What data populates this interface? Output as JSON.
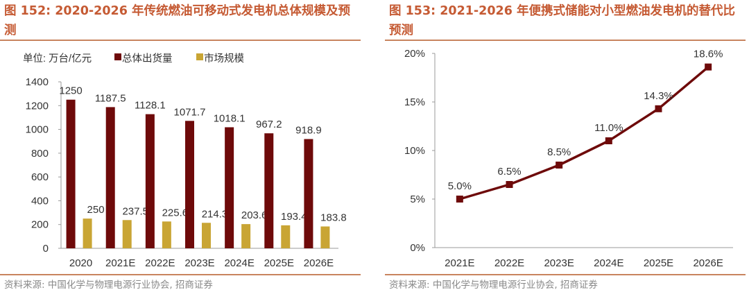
{
  "colors": {
    "title": "#c55a33",
    "rule": "#c8845e",
    "dark_red": "#6e0a0a",
    "gold": "#c9a534",
    "text": "#333333",
    "source": "#888888"
  },
  "left": {
    "title": "图 152: 2020-2026 年传统燃油可移动式发电机总体规模及预测",
    "unit": "单位: 万台/亿元",
    "source": "资料来源: 中国化学与物理电源行业协会, 招商证券"
  },
  "right": {
    "title": "图 153: 2021-2026 年便携式储能对小型燃油发电机的替代比预测",
    "source": "资料来源: 中国化学与物理电源行业协会, 招商证券"
  },
  "chart_data": [
    {
      "type": "bar",
      "categories": [
        "2020",
        "2021E",
        "2022E",
        "2023E",
        "2024E",
        "2025E",
        "2026E"
      ],
      "series": [
        {
          "name": "总体出货量",
          "values": [
            1250,
            1187.5,
            1128.1,
            1071.7,
            1018.1,
            967.2,
            918.9
          ],
          "labels": [
            "1250",
            "1187.5",
            "1128.1",
            "1071.7",
            "1018.1",
            "967.2",
            "918.9"
          ]
        },
        {
          "name": "市场规模",
          "values": [
            250,
            237.5,
            225.6,
            214.3,
            203.6,
            193.4,
            183.8
          ],
          "labels": [
            "250",
            "237.5",
            "225.6",
            "214.3",
            "203.6",
            "193.4",
            "183.8"
          ]
        }
      ],
      "ylim": [
        0,
        1400
      ],
      "yticks": [
        "0",
        "200",
        "400",
        "600",
        "800",
        "1000",
        "1200",
        "1400"
      ],
      "legend_position": "top",
      "grid": false
    },
    {
      "type": "line",
      "x": [
        "2021E",
        "2022E",
        "2023E",
        "2024E",
        "2025E",
        "2026E"
      ],
      "series": [
        {
          "values": [
            5.0,
            6.5,
            8.5,
            11.0,
            14.3,
            18.6
          ],
          "labels": [
            "5.0%",
            "6.5%",
            "8.5%",
            "11.0%",
            "14.3%",
            "18.6%"
          ]
        }
      ],
      "ylim": [
        0,
        20
      ],
      "yticks": [
        "0%",
        "5%",
        "10%",
        "15%",
        "20%"
      ],
      "grid": false
    }
  ]
}
